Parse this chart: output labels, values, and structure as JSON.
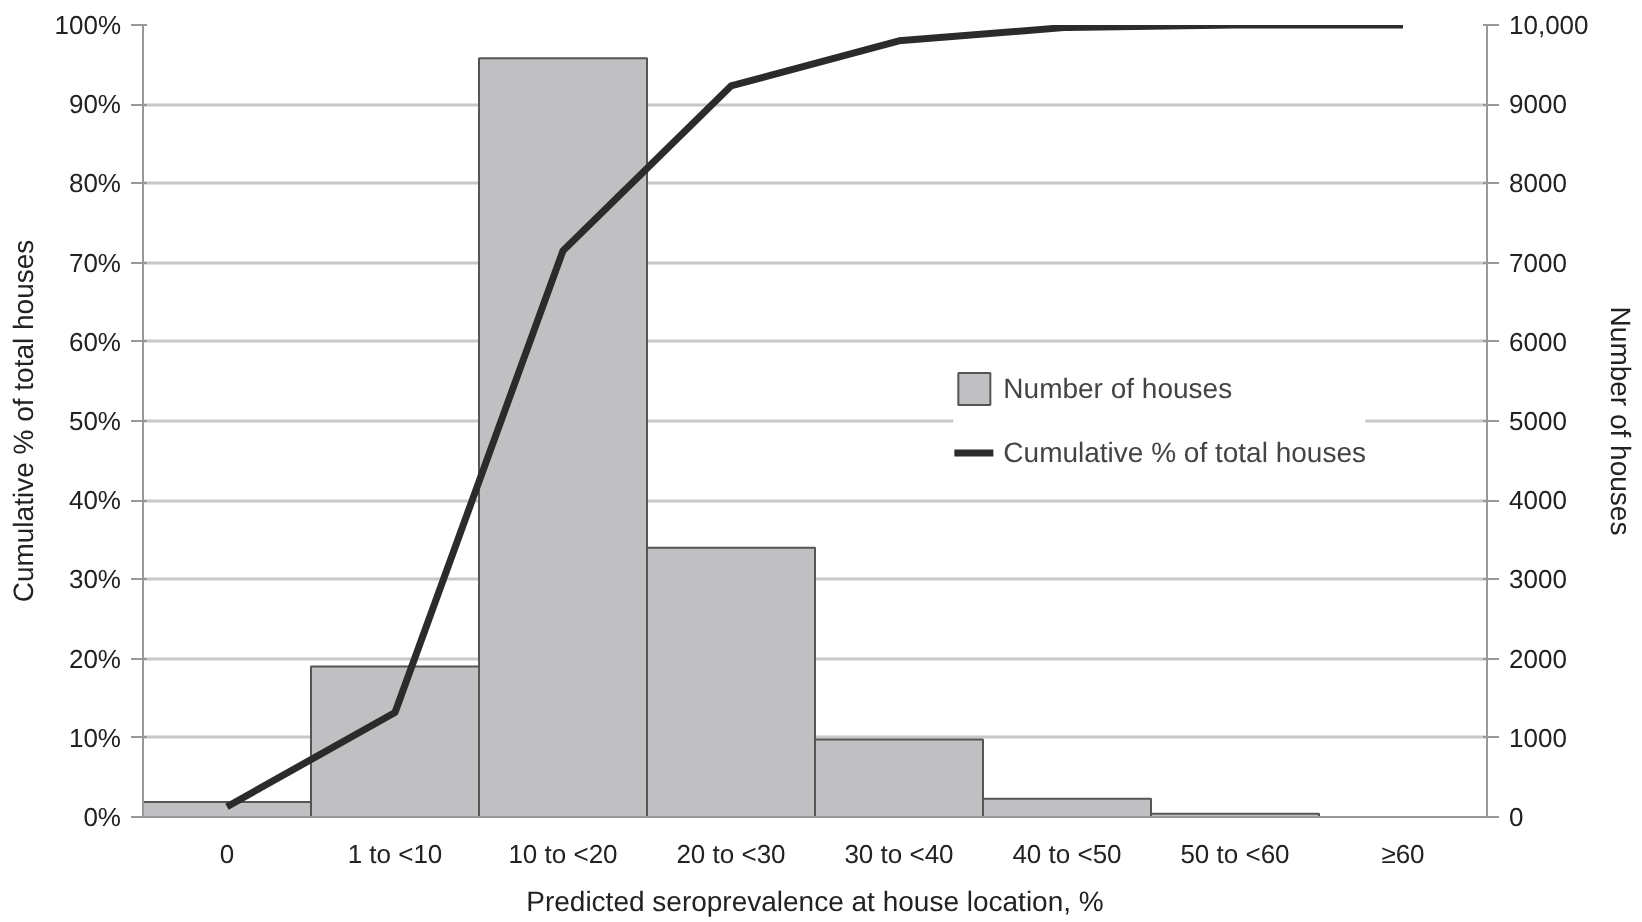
{
  "chart_data": {
    "type": "bar",
    "xlabel": "Predicted seroprevalence at house location, %",
    "ylabel": "Cumulative % of total houses",
    "y2label": "Number of houses",
    "categories": [
      "0",
      "1 to <10",
      "10 to <20",
      "20 to <30",
      "30 to <40",
      "40 to <50",
      "50 to <60",
      "≥60"
    ],
    "series": [
      {
        "name": "Number of houses",
        "axis": "y2",
        "color": "#c0c0c2",
        "values": [
          190,
          1900,
          9580,
          3400,
          980,
          230,
          40,
          null
        ]
      },
      {
        "name": "Cumulative % of total houses",
        "type": "line",
        "color": "#2b2b2b",
        "values": [
          1.3,
          13.2,
          71.5,
          92.3,
          98,
          99.7,
          100,
          100
        ]
      }
    ],
    "ylim": [
      0,
      100
    ],
    "yticks": [
      {
        "value": 0,
        "label": "0%"
      },
      {
        "value": 10,
        "label": "10%"
      },
      {
        "value": 20,
        "label": "20%"
      },
      {
        "value": 30,
        "label": "30%"
      },
      {
        "value": 40,
        "label": "40%"
      },
      {
        "value": 50,
        "label": "50%"
      },
      {
        "value": 60,
        "label": "60%"
      },
      {
        "value": 70,
        "label": "70%"
      },
      {
        "value": 80,
        "label": "80%"
      },
      {
        "value": 90,
        "label": "90%"
      },
      {
        "value": 100,
        "label": "100%"
      }
    ],
    "y2lim": [
      0,
      10000
    ],
    "y2ticks": [
      0,
      1000,
      2000,
      3000,
      4000,
      5000,
      6000,
      7000,
      8000,
      9000,
      {
        "value": 10000,
        "label": "10,000"
      }
    ],
    "grid": "y",
    "legend": "right"
  }
}
